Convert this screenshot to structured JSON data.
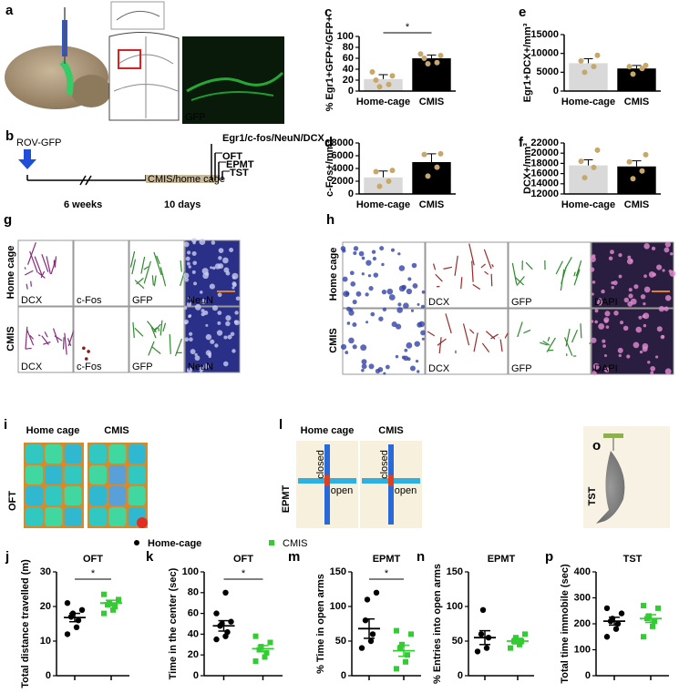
{
  "figure_a": {
    "label": "a",
    "gfp": "GFP"
  },
  "figure_b": {
    "label": "b",
    "start": "ROV-GFP",
    "period1": "6 weeks",
    "period2": "10 days",
    "stress": "CMIS/home cage",
    "assay": "Egr1/c-fos/NeuN/DCX",
    "tests": [
      "OFT",
      "EPMT",
      "TST"
    ]
  },
  "figure_g": {
    "label": "g",
    "rows": [
      "Home cage",
      "CMIS"
    ],
    "stains": [
      "DCX",
      "c-Fos",
      "GFP",
      "NeuN"
    ]
  },
  "figure_h": {
    "label": "h",
    "rows": [
      "Home cage",
      "CMIS"
    ],
    "stains": [
      "DCX",
      "GFP",
      "DAPI"
    ]
  },
  "figure_i": {
    "label": "i",
    "title": "OFT",
    "columns": [
      "Home cage",
      "CMIS"
    ]
  },
  "figure_l": {
    "label": "l",
    "title": "EPMT",
    "columns": [
      "Home cage",
      "CMIS"
    ],
    "arms": [
      "closed",
      "open"
    ]
  },
  "figure_o": {
    "label": "o",
    "title": "TST"
  },
  "legend": [
    {
      "name": "Home-cage",
      "color": "#000000"
    },
    {
      "name": "CMIS",
      "color": "#33cc33"
    }
  ],
  "chart_data": [
    {
      "type": "bar",
      "label": "c",
      "ylabel": "% Egr1+GFP+/GFP+",
      "categories": [
        "Home-cage",
        "CMIS"
      ],
      "values": [
        22,
        60
      ],
      "errors": [
        8,
        6
      ],
      "points": [
        [
          8,
          12,
          20,
          28,
          35
        ],
        [
          50,
          52,
          60,
          65,
          68
        ]
      ],
      "colors": [
        "#d9d9d9",
        "#000000"
      ],
      "point_color": "#c8a86a",
      "ylim": [
        0,
        100
      ],
      "yticks": [
        0,
        20,
        40,
        60,
        80,
        100
      ],
      "significance": "*"
    },
    {
      "type": "bar",
      "label": "d",
      "ylabel": "c-Fos+/mm³",
      "categories": [
        "Home-cage",
        "CMIS"
      ],
      "values": [
        2600,
        5000
      ],
      "errors": [
        1000,
        1300
      ],
      "points": [
        [
          1200,
          2000,
          3500,
          3700
        ],
        [
          2800,
          4200,
          6200,
          6300
        ]
      ],
      "colors": [
        "#d9d9d9",
        "#000000"
      ],
      "point_color": "#c8a86a",
      "ylim": [
        0,
        8000
      ],
      "yticks": [
        0,
        2000,
        4000,
        6000,
        8000
      ]
    },
    {
      "type": "bar",
      "label": "e",
      "ylabel": "Egr1+DCX+/mm³",
      "categories": [
        "Home-cage",
        "CMIS"
      ],
      "values": [
        7400,
        6000
      ],
      "errors": [
        1200,
        800
      ],
      "points": [
        [
          5000,
          6500,
          8000,
          9500
        ],
        [
          4500,
          6000,
          6500,
          6800
        ]
      ],
      "colors": [
        "#d9d9d9",
        "#000000"
      ],
      "point_color": "#c8a86a",
      "ylim": [
        0,
        15000
      ],
      "yticks": [
        0,
        5000,
        10000,
        15000
      ]
    },
    {
      "type": "bar",
      "label": "f",
      "ylabel": "DCX+/mm³",
      "categories": [
        "Home-cage",
        "CMIS"
      ],
      "values": [
        17600,
        17400
      ],
      "errors": [
        1100,
        1100
      ],
      "points": [
        [
          15200,
          17200,
          18400,
          20600
        ],
        [
          15000,
          16500,
          18300,
          19700
        ]
      ],
      "colors": [
        "#d9d9d9",
        "#000000"
      ],
      "point_color": "#c8a86a",
      "ylim": [
        12000,
        22000
      ],
      "yticks": [
        12000,
        14000,
        16000,
        18000,
        20000,
        22000
      ]
    },
    {
      "type": "dot",
      "label": "j",
      "title": "OFT",
      "ylabel": "Total distance travelled (m)",
      "ylim": [
        0,
        30
      ],
      "yticks": [
        0,
        10,
        20,
        30
      ],
      "significance": "*",
      "series": [
        {
          "color": "#000000",
          "values": [
            12,
            14,
            16,
            17,
            18,
            19,
            21
          ],
          "mean": 16.8,
          "sem": 1.2
        },
        {
          "color": "#33cc33",
          "values": [
            18,
            19,
            20,
            20.5,
            21,
            22,
            23.5
          ],
          "mean": 21,
          "sem": 0.8
        }
      ]
    },
    {
      "type": "dot",
      "label": "k",
      "title": "OFT",
      "ylabel": "Time in the center (sec)",
      "ylim": [
        0,
        100
      ],
      "yticks": [
        0,
        20,
        40,
        60,
        80,
        100
      ],
      "significance": "*",
      "series": [
        {
          "color": "#000000",
          "values": [
            35,
            38,
            42,
            48,
            50,
            52,
            60,
            80
          ],
          "mean": 48,
          "sem": 5
        },
        {
          "color": "#33cc33",
          "values": [
            14,
            18,
            22,
            25,
            28,
            32,
            38
          ],
          "mean": 26,
          "sem": 3
        }
      ]
    },
    {
      "type": "dot",
      "label": "m",
      "title": "EPMT",
      "ylabel": "% Time in open arms",
      "ylim": [
        0,
        150
      ],
      "yticks": [
        0,
        50,
        100,
        150
      ],
      "significance": "*",
      "series": [
        {
          "color": "#000000",
          "values": [
            40,
            50,
            60,
            80,
            110,
            120
          ],
          "mean": 68,
          "sem": 14
        },
        {
          "color": "#33cc33",
          "values": [
            10,
            20,
            30,
            40,
            45,
            60,
            65
          ],
          "mean": 36,
          "sem": 8
        }
      ]
    },
    {
      "type": "dot",
      "label": "n",
      "title": "EPMT",
      "ylabel": "% Entries into open arms",
      "ylim": [
        0,
        150
      ],
      "yticks": [
        0,
        50,
        100,
        150
      ],
      "series": [
        {
          "color": "#000000",
          "values": [
            35,
            40,
            55,
            60,
            95
          ],
          "mean": 55,
          "sem": 10
        },
        {
          "color": "#33cc33",
          "values": [
            40,
            45,
            50,
            50,
            55,
            60
          ],
          "mean": 50,
          "sem": 4
        }
      ]
    },
    {
      "type": "dot",
      "label": "p",
      "title": "TST",
      "ylabel": "Total time immobile (sec)",
      "ylim": [
        0,
        400
      ],
      "yticks": [
        0,
        100,
        200,
        300,
        400
      ],
      "series": [
        {
          "color": "#000000",
          "values": [
            150,
            180,
            200,
            210,
            220,
            240,
            260
          ],
          "mean": 210,
          "sem": 15
        },
        {
          "color": "#33cc33",
          "values": [
            150,
            190,
            210,
            220,
            230,
            260,
            270
          ],
          "mean": 220,
          "sem": 15
        }
      ]
    }
  ]
}
